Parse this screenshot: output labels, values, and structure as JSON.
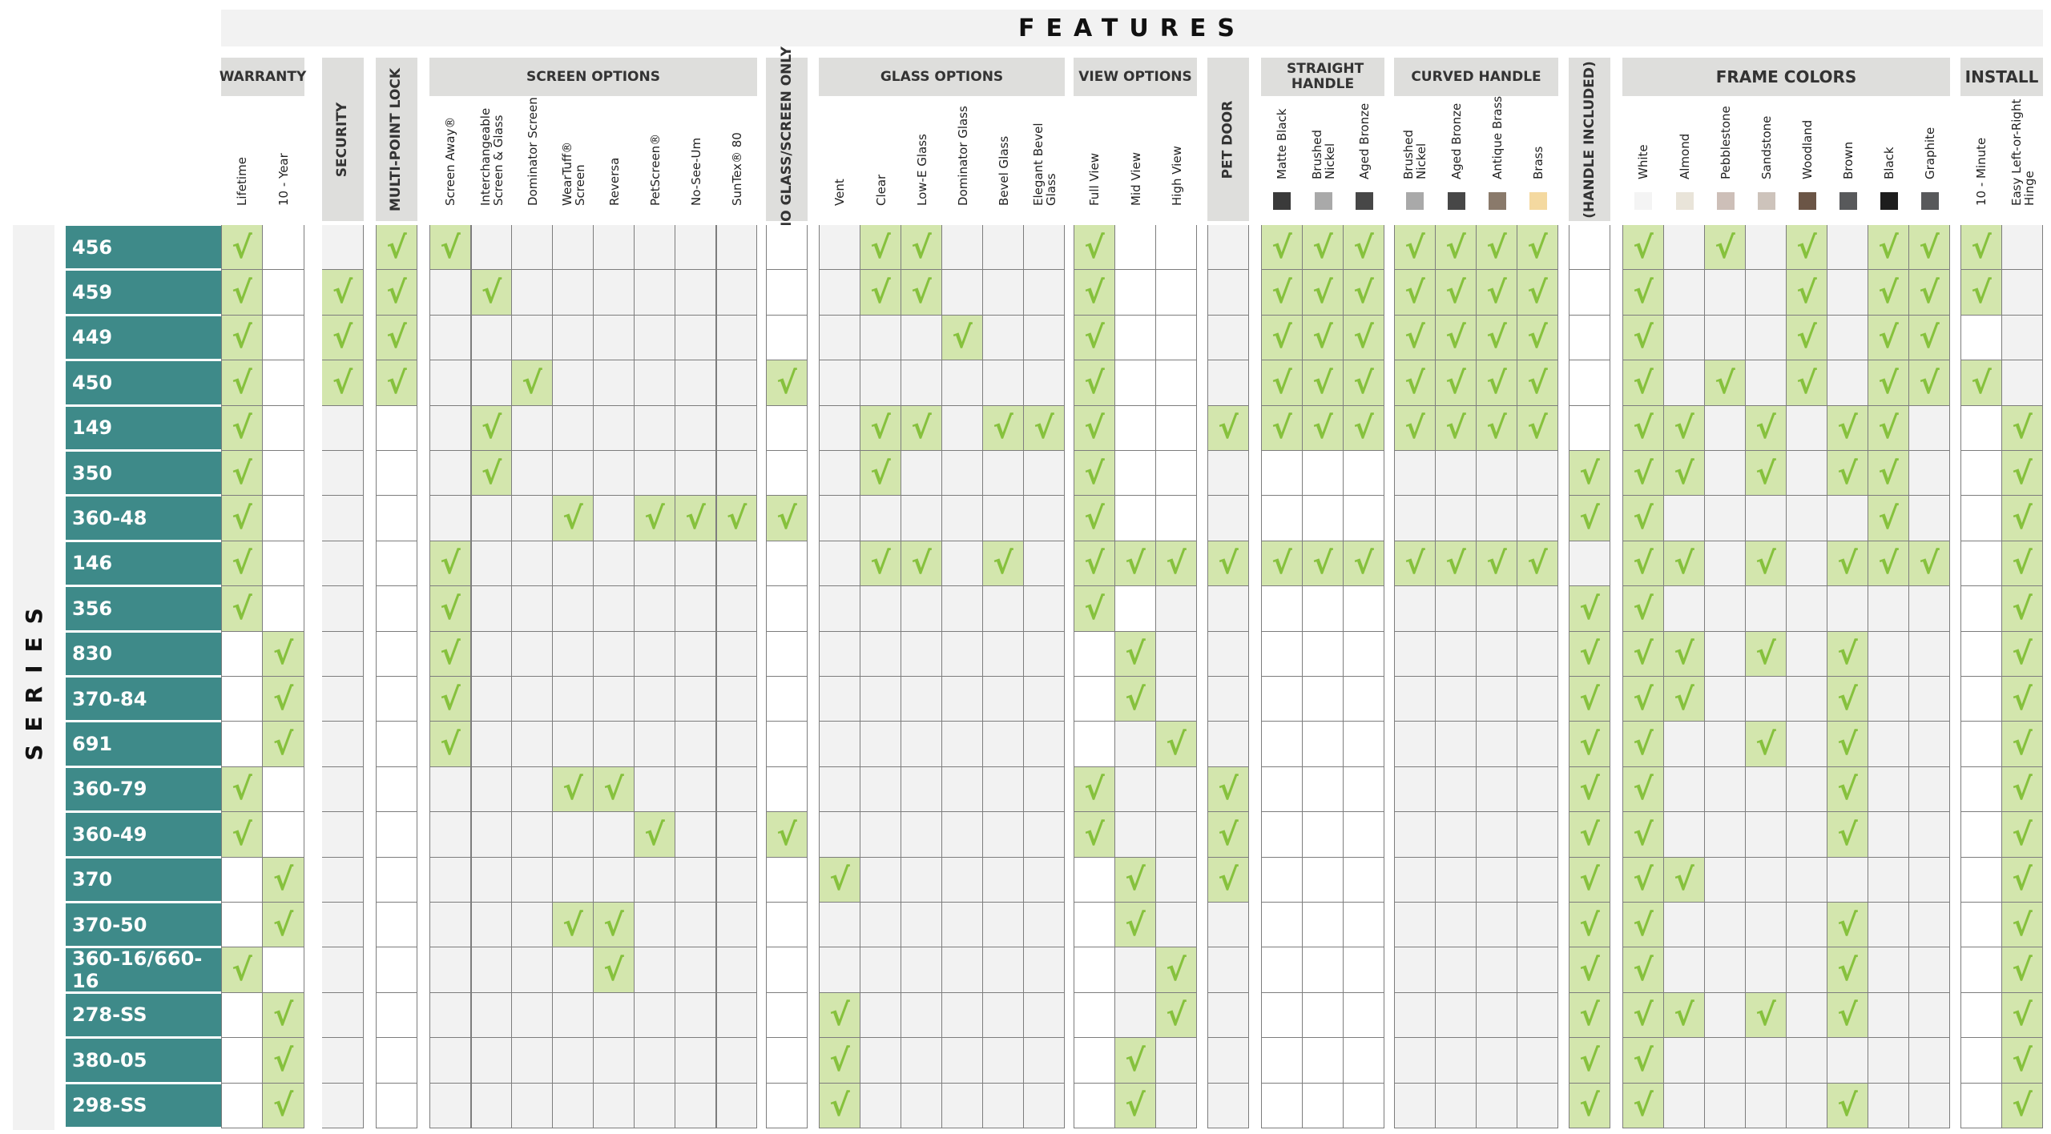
{
  "header": {
    "features": "FEATURES",
    "series": "SERIES"
  },
  "groups": [
    {
      "key": "warranty",
      "label": "WARRANTY",
      "cols": [
        {
          "label": "Lifetime"
        },
        {
          "label": "10 - Year"
        }
      ]
    },
    {
      "key": "security",
      "label": "SECURITY",
      "rotated": true,
      "cols": [
        {
          "label": ""
        }
      ]
    },
    {
      "key": "multipoint",
      "label": "MULTI-POINT LOCK",
      "rotated": true,
      "cols": [
        {
          "label": ""
        }
      ]
    },
    {
      "key": "screen",
      "label": "SCREEN OPTIONS",
      "cols": [
        {
          "label": "Screen Away®"
        },
        {
          "label": "Interchangeable Screen & Glass"
        },
        {
          "label": "Dominator Screen"
        },
        {
          "label": "WearTuff® Screen"
        },
        {
          "label": "Reversa"
        },
        {
          "label": "PetScreen®"
        },
        {
          "label": "No-See-Um"
        },
        {
          "label": "SunTex® 80"
        }
      ]
    },
    {
      "key": "noglass",
      "label": "NO GLASS/SCREEN ONLY",
      "rotated": true,
      "cols": [
        {
          "label": ""
        }
      ]
    },
    {
      "key": "glass",
      "label": "GLASS OPTIONS",
      "cols": [
        {
          "label": "Vent"
        },
        {
          "label": "Clear"
        },
        {
          "label": "Low-E Glass"
        },
        {
          "label": "Dominator Glass"
        },
        {
          "label": "Bevel Glass"
        },
        {
          "label": "Elegant Bevel Glass"
        }
      ]
    },
    {
      "key": "view",
      "label": "VIEW OPTIONS",
      "cols": [
        {
          "label": "Full View"
        },
        {
          "label": "Mid View"
        },
        {
          "label": "High View"
        }
      ]
    },
    {
      "key": "petdoor",
      "label": "PET DOOR",
      "rotated": true,
      "cols": [
        {
          "label": ""
        }
      ]
    },
    {
      "key": "straight",
      "label": "STRAIGHT HANDLE",
      "cols": [
        {
          "label": "Matte Black",
          "color": "#3a3a3a"
        },
        {
          "label": "Brushed Nickel",
          "color": "#a9a9a9"
        },
        {
          "label": "Aged Bronze",
          "color": "#474747"
        }
      ]
    },
    {
      "key": "curved",
      "label": "CURVED HANDLE",
      "cols": [
        {
          "label": "Brushed Nickel",
          "color": "#a9a9a9"
        },
        {
          "label": "Aged Bronze",
          "color": "#474747"
        },
        {
          "label": "Antique Brass",
          "color": "#8a7a6b"
        },
        {
          "label": "Brass",
          "color": "#f4d9a0"
        }
      ]
    },
    {
      "key": "handle",
      "label": "(HANDLE INCLUDED)",
      "rotated": true,
      "cols": [
        {
          "label": ""
        }
      ]
    },
    {
      "key": "frame",
      "label": "FRAME COLORS",
      "cols": [
        {
          "label": "White",
          "color": "#f4f4f4"
        },
        {
          "label": "Almond",
          "color": "#e9e4d9"
        },
        {
          "label": "Pebblestone",
          "color": "#cdbfb8"
        },
        {
          "label": "Sandstone",
          "color": "#cdc3bb"
        },
        {
          "label": "Woodland",
          "color": "#6b5546"
        },
        {
          "label": "Brown",
          "color": "#58595b"
        },
        {
          "label": "Black",
          "color": "#1d1d1d"
        },
        {
          "label": "Graphite",
          "color": "#58595b"
        }
      ]
    },
    {
      "key": "install",
      "label": "INSTALL",
      "cols": [
        {
          "label": "10 - Minute"
        },
        {
          "label": "Easy Left-or-Right Hinge"
        }
      ]
    }
  ],
  "check_symbol": "√",
  "rows": [
    {
      "name": "456",
      "c": [
        1,
        0,
        0,
        1,
        1,
        0,
        0,
        0,
        0,
        0,
        0,
        0,
        0,
        0,
        1,
        1,
        0,
        0,
        0,
        1,
        0,
        0,
        0,
        1,
        1,
        1,
        1,
        1,
        1,
        1,
        0,
        1,
        0,
        1,
        0,
        1,
        0,
        1,
        1,
        1,
        0
      ]
    },
    {
      "name": "459",
      "c": [
        1,
        0,
        1,
        1,
        0,
        1,
        0,
        0,
        0,
        0,
        0,
        0,
        0,
        0,
        1,
        1,
        0,
        0,
        0,
        1,
        0,
        0,
        0,
        1,
        1,
        1,
        1,
        1,
        1,
        1,
        0,
        1,
        0,
        0,
        0,
        1,
        0,
        1,
        1,
        1,
        0
      ]
    },
    {
      "name": "449",
      "c": [
        1,
        0,
        1,
        1,
        0,
        0,
        0,
        0,
        0,
        0,
        0,
        0,
        0,
        0,
        0,
        0,
        1,
        0,
        0,
        1,
        0,
        0,
        0,
        1,
        1,
        1,
        1,
        1,
        1,
        1,
        0,
        1,
        0,
        0,
        0,
        1,
        0,
        1,
        1,
        0,
        0
      ]
    },
    {
      "name": "450",
      "c": [
        1,
        0,
        1,
        1,
        0,
        0,
        1,
        0,
        0,
        0,
        0,
        0,
        1,
        0,
        0,
        0,
        0,
        0,
        0,
        1,
        0,
        0,
        0,
        1,
        1,
        1,
        1,
        1,
        1,
        1,
        0,
        1,
        0,
        1,
        0,
        1,
        0,
        1,
        1,
        1,
        0
      ]
    },
    {
      "name": "149",
      "c": [
        1,
        0,
        0,
        0,
        0,
        1,
        0,
        0,
        0,
        0,
        0,
        0,
        0,
        0,
        1,
        1,
        0,
        1,
        1,
        1,
        0,
        0,
        1,
        1,
        1,
        1,
        1,
        1,
        1,
        1,
        0,
        1,
        1,
        0,
        1,
        0,
        1,
        1,
        0,
        0,
        1
      ]
    },
    {
      "name": "350",
      "c": [
        1,
        0,
        0,
        0,
        0,
        1,
        0,
        0,
        0,
        0,
        0,
        0,
        0,
        0,
        1,
        0,
        0,
        0,
        0,
        1,
        0,
        0,
        0,
        0,
        0,
        0,
        0,
        0,
        0,
        0,
        1,
        1,
        1,
        0,
        1,
        0,
        1,
        1,
        0,
        0,
        1
      ]
    },
    {
      "name": "360-48",
      "c": [
        1,
        0,
        0,
        0,
        0,
        0,
        0,
        1,
        0,
        1,
        1,
        1,
        1,
        0,
        0,
        0,
        0,
        0,
        0,
        1,
        0,
        0,
        0,
        0,
        0,
        0,
        0,
        0,
        0,
        0,
        1,
        1,
        0,
        0,
        0,
        0,
        0,
        1,
        0,
        0,
        1
      ]
    },
    {
      "name": "146",
      "c": [
        1,
        0,
        0,
        0,
        1,
        0,
        0,
        0,
        0,
        0,
        0,
        0,
        0,
        0,
        1,
        1,
        0,
        1,
        0,
        1,
        1,
        1,
        1,
        1,
        1,
        1,
        1,
        1,
        1,
        1,
        0,
        1,
        1,
        0,
        1,
        0,
        1,
        1,
        1,
        0,
        1
      ]
    },
    {
      "name": "356",
      "c": [
        1,
        0,
        0,
        0,
        1,
        0,
        0,
        0,
        0,
        0,
        0,
        0,
        0,
        0,
        0,
        0,
        0,
        0,
        0,
        1,
        0,
        0,
        0,
        0,
        0,
        0,
        0,
        0,
        0,
        0,
        1,
        1,
        0,
        0,
        0,
        0,
        0,
        0,
        0,
        0,
        1
      ]
    },
    {
      "name": "830",
      "c": [
        0,
        1,
        0,
        0,
        1,
        0,
        0,
        0,
        0,
        0,
        0,
        0,
        0,
        0,
        0,
        0,
        0,
        0,
        0,
        0,
        1,
        0,
        0,
        0,
        0,
        0,
        0,
        0,
        0,
        0,
        1,
        1,
        1,
        0,
        1,
        0,
        1,
        0,
        0,
        0,
        1
      ]
    },
    {
      "name": "370-84",
      "c": [
        0,
        1,
        0,
        0,
        1,
        0,
        0,
        0,
        0,
        0,
        0,
        0,
        0,
        0,
        0,
        0,
        0,
        0,
        0,
        0,
        1,
        0,
        0,
        0,
        0,
        0,
        0,
        0,
        0,
        0,
        1,
        1,
        1,
        0,
        0,
        0,
        1,
        0,
        0,
        0,
        1
      ]
    },
    {
      "name": "691",
      "c": [
        0,
        1,
        0,
        0,
        1,
        0,
        0,
        0,
        0,
        0,
        0,
        0,
        0,
        0,
        0,
        0,
        0,
        0,
        0,
        0,
        0,
        1,
        0,
        0,
        0,
        0,
        0,
        0,
        0,
        0,
        1,
        1,
        0,
        0,
        1,
        0,
        1,
        0,
        0,
        0,
        1
      ]
    },
    {
      "name": "360-79",
      "c": [
        1,
        0,
        0,
        0,
        0,
        0,
        0,
        1,
        1,
        0,
        0,
        0,
        0,
        0,
        0,
        0,
        0,
        0,
        0,
        1,
        0,
        0,
        1,
        0,
        0,
        0,
        0,
        0,
        0,
        0,
        1,
        1,
        0,
        0,
        0,
        0,
        1,
        0,
        0,
        0,
        1
      ]
    },
    {
      "name": "360-49",
      "c": [
        1,
        0,
        0,
        0,
        0,
        0,
        0,
        0,
        0,
        1,
        0,
        0,
        1,
        0,
        0,
        0,
        0,
        0,
        0,
        1,
        0,
        0,
        1,
        0,
        0,
        0,
        0,
        0,
        0,
        0,
        1,
        1,
        0,
        0,
        0,
        0,
        1,
        0,
        0,
        0,
        1
      ]
    },
    {
      "name": "370",
      "c": [
        0,
        1,
        0,
        0,
        0,
        0,
        0,
        0,
        0,
        0,
        0,
        0,
        0,
        1,
        0,
        0,
        0,
        0,
        0,
        0,
        1,
        0,
        1,
        0,
        0,
        0,
        0,
        0,
        0,
        0,
        1,
        1,
        1,
        0,
        0,
        0,
        0,
        0,
        0,
        0,
        1
      ]
    },
    {
      "name": "370-50",
      "c": [
        0,
        1,
        0,
        0,
        0,
        0,
        0,
        1,
        1,
        0,
        0,
        0,
        0,
        0,
        0,
        0,
        0,
        0,
        0,
        0,
        1,
        0,
        0,
        0,
        0,
        0,
        0,
        0,
        0,
        0,
        1,
        1,
        0,
        0,
        0,
        0,
        1,
        0,
        0,
        0,
        1
      ]
    },
    {
      "name": "360-16/660-16",
      "c": [
        1,
        0,
        0,
        0,
        0,
        0,
        0,
        0,
        1,
        0,
        0,
        0,
        0,
        0,
        0,
        0,
        0,
        0,
        0,
        0,
        0,
        1,
        0,
        0,
        0,
        0,
        0,
        0,
        0,
        0,
        1,
        1,
        0,
        0,
        0,
        0,
        1,
        0,
        0,
        0,
        1
      ]
    },
    {
      "name": "278-SS",
      "c": [
        0,
        1,
        0,
        0,
        0,
        0,
        0,
        0,
        0,
        0,
        0,
        0,
        0,
        1,
        0,
        0,
        0,
        0,
        0,
        0,
        0,
        1,
        0,
        0,
        0,
        0,
        0,
        0,
        0,
        0,
        1,
        1,
        1,
        0,
        1,
        0,
        1,
        0,
        0,
        0,
        1
      ]
    },
    {
      "name": "380-05",
      "c": [
        0,
        1,
        0,
        0,
        0,
        0,
        0,
        0,
        0,
        0,
        0,
        0,
        0,
        1,
        0,
        0,
        0,
        0,
        0,
        0,
        1,
        0,
        0,
        0,
        0,
        0,
        0,
        0,
        0,
        0,
        1,
        1,
        0,
        0,
        0,
        0,
        0,
        0,
        0,
        0,
        1
      ]
    },
    {
      "name": "298-SS",
      "c": [
        0,
        1,
        0,
        0,
        0,
        0,
        0,
        0,
        0,
        0,
        0,
        0,
        0,
        1,
        0,
        0,
        0,
        0,
        0,
        0,
        1,
        0,
        0,
        0,
        0,
        0,
        0,
        0,
        0,
        0,
        1,
        1,
        0,
        0,
        0,
        0,
        1,
        0,
        0,
        0,
        1
      ]
    }
  ]
}
